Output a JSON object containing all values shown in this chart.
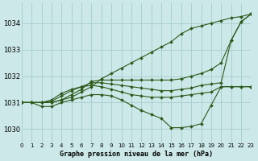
{
  "title": "Graphe pression niveau de la mer (hPa)",
  "background_color": "#cce8e8",
  "grid_color": "#aad0d0",
  "line_color": "#2d5a1b",
  "xlim": [
    0,
    23
  ],
  "ylim": [
    1029.5,
    1034.75
  ],
  "yticks": [
    1030,
    1031,
    1032,
    1033,
    1034
  ],
  "xticks": [
    0,
    1,
    2,
    3,
    4,
    5,
    6,
    7,
    8,
    9,
    10,
    11,
    12,
    13,
    14,
    15,
    16,
    17,
    18,
    19,
    20,
    21,
    22,
    23
  ],
  "series": [
    {
      "x": [
        0,
        1,
        2,
        3,
        4,
        5,
        6,
        7,
        8,
        9,
        10,
        11,
        12,
        13,
        14,
        15,
        16,
        17,
        18,
        19,
        20,
        21,
        22,
        23
      ],
      "y": [
        1031.0,
        1031.0,
        1031.0,
        1031.0,
        1031.1,
        1031.2,
        1031.4,
        1031.6,
        1031.9,
        1032.1,
        1032.3,
        1032.5,
        1032.7,
        1032.9,
        1033.1,
        1033.3,
        1033.6,
        1033.8,
        1033.9,
        1034.0,
        1034.1,
        1034.2,
        1034.25,
        1034.35
      ]
    },
    {
      "x": [
        0,
        1,
        2,
        3,
        4,
        5,
        6,
        7,
        8,
        9,
        10,
        11,
        12,
        13,
        14,
        15,
        16,
        17,
        18,
        19,
        20,
        21,
        22,
        23
      ],
      "y": [
        1031.0,
        1031.0,
        1031.0,
        1031.0,
        1031.1,
        1031.3,
        1031.5,
        1031.8,
        1031.85,
        1031.85,
        1031.85,
        1031.85,
        1031.85,
        1031.85,
        1031.85,
        1031.85,
        1031.9,
        1032.0,
        1032.1,
        1032.25,
        1032.5,
        1033.35,
        1034.05,
        1034.35
      ]
    },
    {
      "x": [
        0,
        1,
        2,
        3,
        4,
        5,
        6,
        7,
        8,
        9,
        10,
        11,
        12,
        13,
        14,
        15,
        16,
        17,
        18,
        19,
        20,
        21,
        22,
        23
      ],
      "y": [
        1031.0,
        1031.0,
        1031.0,
        1031.05,
        1031.25,
        1031.45,
        1031.6,
        1031.75,
        1031.75,
        1031.7,
        1031.65,
        1031.6,
        1031.55,
        1031.5,
        1031.45,
        1031.45,
        1031.5,
        1031.55,
        1031.65,
        1031.7,
        1031.75,
        1033.35,
        1034.05,
        1034.35
      ]
    },
    {
      "x": [
        0,
        1,
        2,
        3,
        4,
        5,
        6,
        7,
        8,
        9,
        10,
        11,
        12,
        13,
        14,
        15,
        16,
        17,
        18,
        19,
        20,
        21,
        22,
        23
      ],
      "y": [
        1031.0,
        1031.0,
        1031.0,
        1031.1,
        1031.35,
        1031.5,
        1031.6,
        1031.65,
        1031.6,
        1031.5,
        1031.4,
        1031.3,
        1031.25,
        1031.2,
        1031.2,
        1031.2,
        1031.25,
        1031.3,
        1031.35,
        1031.4,
        1031.6,
        1031.6,
        1031.6,
        1031.6
      ]
    },
    {
      "x": [
        0,
        1,
        2,
        3,
        4,
        5,
        6,
        7,
        8,
        9,
        10,
        11,
        12,
        13,
        14,
        15,
        16,
        17,
        18,
        19,
        20,
        21,
        22,
        23
      ],
      "y": [
        1031.0,
        1031.0,
        1030.85,
        1030.85,
        1031.0,
        1031.1,
        1031.2,
        1031.3,
        1031.3,
        1031.25,
        1031.1,
        1030.9,
        1030.7,
        1030.55,
        1030.4,
        1030.05,
        1030.05,
        1030.1,
        1030.2,
        1030.9,
        1031.6,
        1031.6,
        1031.6,
        1031.6
      ]
    }
  ]
}
